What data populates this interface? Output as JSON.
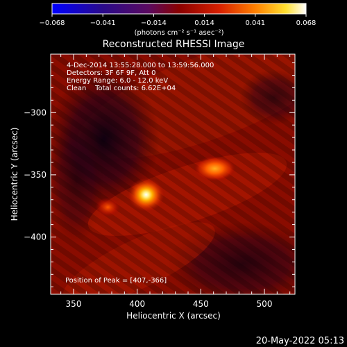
{
  "chart_data": {
    "type": "heatmap",
    "title": "Reconstructed RHESSI Image",
    "xlabel": "Heliocentric X (arcsec)",
    "ylabel": "Heliocentric Y (arcsec)",
    "xlim": [
      332,
      524
    ],
    "ylim": [
      -446,
      -253
    ],
    "x_ticks": [
      350,
      400,
      450,
      500
    ],
    "y_ticks": [
      -300,
      -350,
      -400
    ],
    "colorbar": {
      "label": "(photons cm⁻² s⁻¹ asec⁻²)",
      "ticks": [
        "−0.068",
        "−0.041",
        "−0.014",
        "0.014",
        "0.041",
        "0.068"
      ],
      "range": [
        -0.068,
        0.068
      ],
      "colormap": "blue-purple-red-yellow-white"
    },
    "annotations": [
      "4-Dec-2014 13:55:28.000 to 13:59:56.000",
      "Detectors: 3F 6F 9F, Att 0",
      "Energy Range: 6.0 - 12.0 keV",
      "Clean    Total counts: 6.62E+04"
    ],
    "peak_label": "Position of Peak = [407,-366]",
    "sources": [
      {
        "x": 407,
        "y": -366,
        "value": 0.068
      },
      {
        "x": 461,
        "y": -345,
        "value": 0.045
      },
      {
        "x": 377,
        "y": -376,
        "value": 0.03
      }
    ],
    "timestamp": "20-May-2022 05:13"
  }
}
